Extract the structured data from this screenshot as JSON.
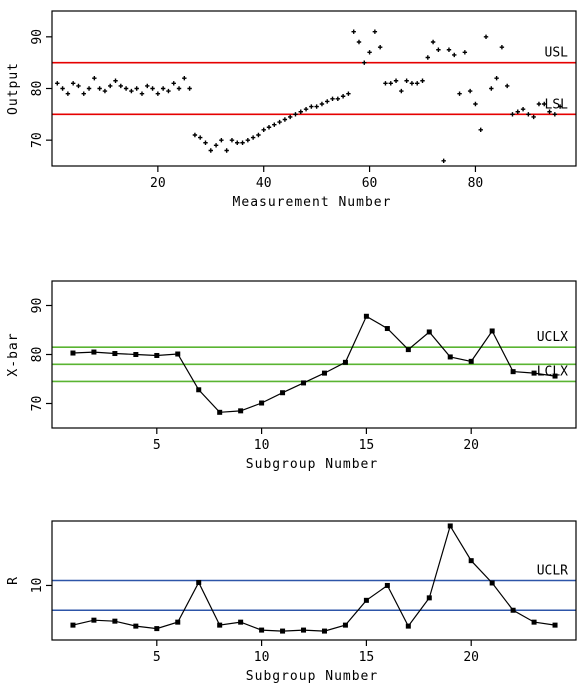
{
  "chart_data": [
    {
      "type": "scatter",
      "xlabel": "Measurement Number",
      "ylabel": "Output",
      "xlim": [
        0,
        99
      ],
      "ylim": [
        65,
        95
      ],
      "xticks": [
        "20",
        "40",
        "60",
        "80"
      ],
      "yticks": [
        "70",
        "80",
        "90"
      ],
      "marker": "plus",
      "lines": [
        {
          "label": "USL",
          "value": 85,
          "color": "#e60000"
        },
        {
          "label": "LSL",
          "value": 75,
          "color": "#e60000"
        }
      ],
      "x": [
        1,
        2,
        3,
        4,
        5,
        6,
        7,
        8,
        9,
        10,
        11,
        12,
        13,
        14,
        15,
        16,
        17,
        18,
        19,
        20,
        21,
        22,
        23,
        24,
        25,
        26,
        27,
        28,
        29,
        30,
        31,
        32,
        33,
        34,
        35,
        36,
        37,
        38,
        39,
        40,
        41,
        42,
        43,
        44,
        45,
        46,
        47,
        48,
        49,
        50,
        51,
        52,
        53,
        54,
        55,
        56,
        57,
        58,
        59,
        60,
        61,
        62,
        63,
        64,
        65,
        66,
        67,
        68,
        69,
        70,
        71,
        72,
        73,
        74,
        75,
        76,
        77,
        78,
        79,
        80,
        81,
        82,
        83,
        84,
        85,
        86,
        87,
        88,
        89,
        90,
        91,
        92,
        93,
        94,
        95,
        96
      ],
      "y": [
        81,
        80,
        79,
        81,
        80.5,
        79,
        80,
        82,
        80,
        79.5,
        80.5,
        81.5,
        80.5,
        80,
        79.5,
        80,
        79,
        80.5,
        80,
        79,
        80,
        79.5,
        81,
        80,
        82,
        80,
        71,
        70.5,
        69.5,
        68,
        69,
        70,
        68,
        70,
        69.5,
        69.5,
        70,
        70.5,
        71,
        72,
        72.5,
        73,
        73.5,
        74,
        74.5,
        75,
        75.5,
        76,
        76.5,
        76.5,
        77,
        77.5,
        78,
        78,
        78.5,
        79,
        91,
        89,
        85,
        87,
        91,
        88,
        81,
        81,
        81.5,
        79.5,
        81.5,
        81,
        81,
        81.5,
        86,
        89,
        87.5,
        66,
        87.5,
        86.5,
        79,
        87,
        79.5,
        77,
        72,
        90,
        80,
        82,
        88,
        80.5,
        75,
        75.5,
        76,
        75,
        74.5,
        77,
        77,
        75.5,
        75,
        76.5
      ]
    },
    {
      "type": "line",
      "xlabel": "Subgroup Number",
      "ylabel": "X-bar",
      "xlim": [
        0,
        25
      ],
      "ylim": [
        65,
        95
      ],
      "xticks": [
        "5",
        "10",
        "15",
        "20"
      ],
      "yticks": [
        "70",
        "80",
        "90"
      ],
      "lines": [
        {
          "label": "UCLX",
          "value": 81.5,
          "color": "#5ab432"
        },
        {
          "label": "",
          "value": 78,
          "color": "#5ab432"
        },
        {
          "label": "LCLX",
          "value": 74.5,
          "color": "#5ab432"
        }
      ],
      "x": [
        1,
        2,
        3,
        4,
        5,
        6,
        7,
        8,
        9,
        10,
        11,
        12,
        13,
        14,
        15,
        16,
        17,
        18,
        19,
        20,
        21,
        22,
        23,
        24
      ],
      "y": [
        80.3,
        80.5,
        80.2,
        80,
        79.8,
        80.1,
        72.8,
        68.2,
        68.5,
        70.1,
        72.2,
        74.2,
        76.2,
        78.4,
        87.8,
        85.3,
        81,
        84.6,
        79.5,
        78.6,
        84.8,
        76.5,
        76.2,
        75.6
      ]
    },
    {
      "type": "line",
      "xlabel": "Subgroup Number",
      "ylabel": "R",
      "xlim": [
        0,
        25
      ],
      "ylim": [
        -1,
        23
      ],
      "xticks": [
        "5",
        "10",
        "15",
        "20"
      ],
      "yticks": [
        "10"
      ],
      "lines": [
        {
          "label": "UCLR",
          "value": 11,
          "color": "#2d55a8"
        },
        {
          "label": "",
          "value": 5,
          "color": "#2d55a8"
        }
      ],
      "x": [
        1,
        2,
        3,
        4,
        5,
        6,
        7,
        8,
        9,
        10,
        11,
        12,
        13,
        14,
        15,
        16,
        17,
        18,
        19,
        20,
        21,
        22,
        23,
        24
      ],
      "y": [
        2,
        3,
        2.8,
        1.8,
        1.3,
        2.6,
        10.6,
        2,
        2.6,
        1,
        0.8,
        1,
        0.8,
        2,
        7,
        10,
        1.8,
        7.5,
        22,
        15,
        10.5,
        5,
        2.6,
        2
      ]
    }
  ]
}
